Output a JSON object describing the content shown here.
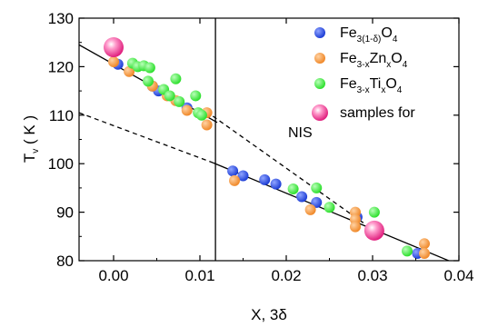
{
  "chart_data": {
    "type": "scatter",
    "xlabel_main": "X, 3",
    "xlabel_symbol": "δ",
    "ylabel_main": "T",
    "ylabel_sub": "v",
    "ylabel_unit": " ( K )",
    "xlim": [
      -0.004,
      0.04
    ],
    "ylim": [
      80,
      130
    ],
    "x_ticks": [
      0.0,
      0.01,
      0.02,
      0.03,
      0.04
    ],
    "x_tick_labels": [
      "0.00",
      "0.01",
      "0.02",
      "0.03",
      "0.04"
    ],
    "y_ticks": [
      80,
      90,
      100,
      110,
      120,
      130
    ],
    "y_tick_labels": [
      "80",
      "90",
      "100",
      "110",
      "120",
      "130"
    ],
    "grid": false,
    "legend_position": "top-right",
    "series": [
      {
        "key": "fe3_1_delta",
        "color": "#1f3fd6",
        "marker": "circle",
        "legend": {
          "parts": [
            {
              "t": "Fe",
              "sub": false
            },
            {
              "t": "3(1-δ)",
              "sub": true
            },
            {
              "t": "O",
              "sub": false
            },
            {
              "t": "4",
              "sub": true
            }
          ]
        },
        "points": [
          [
            0.0005,
            120.5
          ],
          [
            0.0045,
            116.0
          ],
          [
            0.0052,
            115.0
          ],
          [
            0.0085,
            111.5
          ],
          [
            0.0138,
            98.5
          ],
          [
            0.015,
            97.5
          ],
          [
            0.0175,
            96.7
          ],
          [
            0.0188,
            95.8
          ],
          [
            0.0218,
            93.2
          ],
          [
            0.0235,
            92.0
          ],
          [
            0.0282,
            89.0
          ],
          [
            0.0352,
            81.5
          ]
        ]
      },
      {
        "key": "fe3x_zn",
        "color": "#f0892a",
        "marker": "circle",
        "legend": {
          "parts": [
            {
              "t": "Fe",
              "sub": false
            },
            {
              "t": "3-x",
              "sub": true
            },
            {
              "t": "Zn",
              "sub": false
            },
            {
              "t": "x",
              "sub": true
            },
            {
              "t": "O",
              "sub": false
            },
            {
              "t": "4",
              "sub": true
            }
          ]
        },
        "points": [
          [
            0.0,
            121.0
          ],
          [
            0.0018,
            119.0
          ],
          [
            0.0045,
            116.0
          ],
          [
            0.0062,
            114.0
          ],
          [
            0.0072,
            113.0
          ],
          [
            0.0085,
            111.0
          ],
          [
            0.0108,
            110.5
          ],
          [
            0.0108,
            108.0
          ],
          [
            0.014,
            96.5
          ],
          [
            0.0228,
            90.5
          ],
          [
            0.028,
            90.0
          ],
          [
            0.028,
            88.5
          ],
          [
            0.028,
            87.0
          ],
          [
            0.036,
            83.5
          ],
          [
            0.036,
            81.5
          ]
        ]
      },
      {
        "key": "fe3x_ti",
        "color": "#2fe02f",
        "marker": "circle",
        "legend": {
          "parts": [
            {
              "t": "Fe",
              "sub": false
            },
            {
              "t": "3-x",
              "sub": true
            },
            {
              "t": "Ti",
              "sub": false
            },
            {
              "t": "x",
              "sub": true
            },
            {
              "t": "O",
              "sub": false
            },
            {
              "t": "4",
              "sub": true
            }
          ]
        },
        "points": [
          [
            0.0022,
            120.7
          ],
          [
            0.0028,
            120.0
          ],
          [
            0.0035,
            120.2
          ],
          [
            0.0042,
            119.8
          ],
          [
            0.004,
            117.0
          ],
          [
            0.0058,
            115.3
          ],
          [
            0.0065,
            114.0
          ],
          [
            0.0072,
            117.5
          ],
          [
            0.0076,
            112.8
          ],
          [
            0.0095,
            114.0
          ],
          [
            0.0098,
            110.5
          ],
          [
            0.0102,
            110.0
          ],
          [
            0.0208,
            94.8
          ],
          [
            0.0235,
            95.0
          ],
          [
            0.025,
            91.0
          ],
          [
            0.0302,
            90.0
          ],
          [
            0.034,
            82.0
          ]
        ]
      },
      {
        "key": "nis_samples",
        "color": "#ee2f8f",
        "marker": "big-circle",
        "legend": {
          "parts": [
            {
              "t": "samples for",
              "sub": false
            }
          ],
          "line2": "NIS"
        },
        "points": [
          [
            0.0,
            124.0
          ],
          [
            0.0302,
            86.2
          ]
        ]
      }
    ],
    "lines": [
      {
        "key": "fit-upper-solid",
        "style": "solid",
        "from": [
          -0.004,
          124.5
        ],
        "to": [
          0.012,
          108.5
        ]
      },
      {
        "key": "fit-lower-solid",
        "style": "solid",
        "from": [
          0.0115,
          100.2
        ],
        "to": [
          0.0395,
          79.5
        ]
      },
      {
        "key": "dashed-upper",
        "style": "dashed",
        "from": [
          0.0115,
          109.8
        ],
        "to": [
          0.0302,
          86.2
        ]
      },
      {
        "key": "dashed-lower",
        "style": "dashed",
        "from": [
          -0.004,
          110.5
        ],
        "to": [
          0.0115,
          100.2
        ]
      },
      {
        "key": "vertical-divider",
        "style": "solid",
        "from": [
          0.0118,
          80
        ],
        "to": [
          0.0118,
          130
        ]
      }
    ]
  }
}
